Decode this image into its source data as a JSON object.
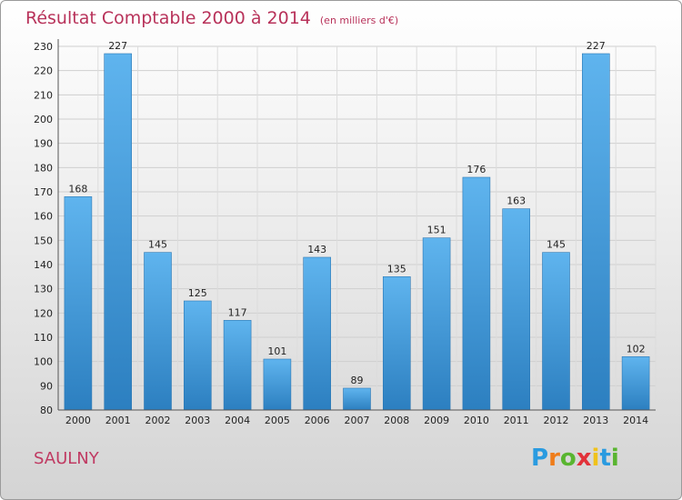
{
  "header": {
    "title": "Résultat Comptable 2000 à 2014",
    "subtitle": "(en milliers d'€)"
  },
  "footer": {
    "commune": "SAULNY",
    "logo_letters": [
      "P",
      "r",
      "o",
      "x",
      "i",
      "t",
      "i"
    ],
    "logo_colors": [
      "#2a9be0",
      "#ef7d1a",
      "#59b530",
      "#e2323a",
      "#f0c21b",
      "#2a9be0",
      "#59b530"
    ]
  },
  "chart_data": {
    "type": "bar",
    "title": "Résultat Comptable 2000 à 2014",
    "subtitle": "(en milliers d'€)",
    "categories": [
      "2000",
      "2001",
      "2002",
      "2003",
      "2004",
      "2005",
      "2006",
      "2007",
      "2008",
      "2009",
      "2010",
      "2011",
      "2012",
      "2013",
      "2014"
    ],
    "values": [
      168,
      227,
      145,
      125,
      117,
      101,
      143,
      89,
      135,
      151,
      176,
      163,
      145,
      227,
      102
    ],
    "ylim": [
      80,
      230
    ],
    "yticks": [
      80,
      90,
      100,
      110,
      120,
      130,
      140,
      150,
      160,
      170,
      180,
      190,
      200,
      210,
      220,
      230
    ],
    "grid": true,
    "bar_color": "#4aa0e0",
    "xlabel": "",
    "ylabel": ""
  }
}
